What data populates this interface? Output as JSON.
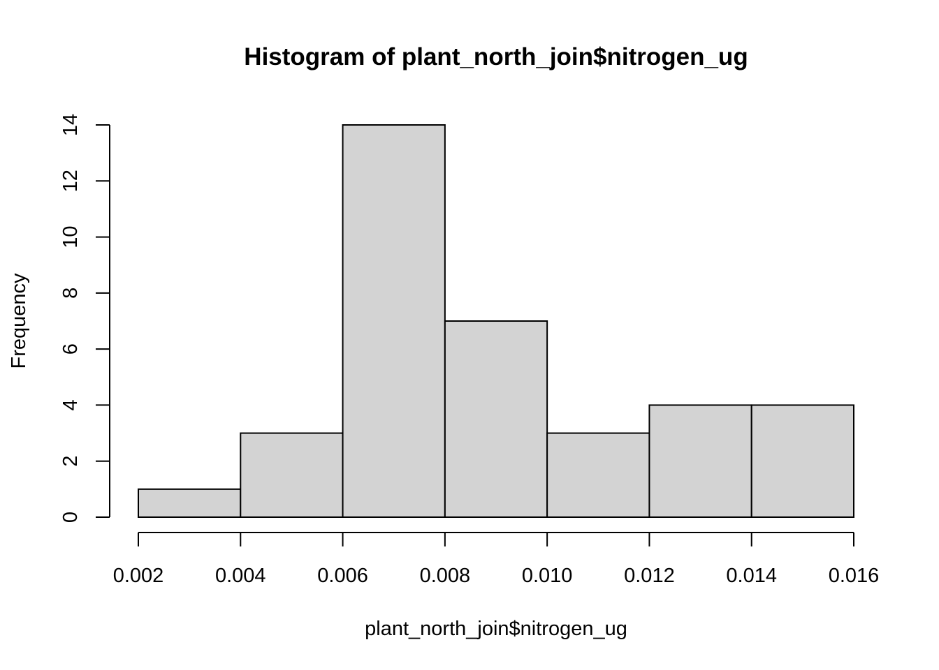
{
  "chart_data": {
    "type": "bar",
    "title": "Histogram of plant_north_join$nitrogen_ug",
    "xlabel": "plant_north_join$nitrogen_ug",
    "ylabel": "Frequency",
    "bins": [
      {
        "x0": 0.002,
        "x1": 0.004,
        "count": 1
      },
      {
        "x0": 0.004,
        "x1": 0.006,
        "count": 3
      },
      {
        "x0": 0.006,
        "x1": 0.008,
        "count": 14
      },
      {
        "x0": 0.008,
        "x1": 0.01,
        "count": 7
      },
      {
        "x0": 0.01,
        "x1": 0.012,
        "count": 3
      },
      {
        "x0": 0.012,
        "x1": 0.014,
        "count": 4
      },
      {
        "x0": 0.014,
        "x1": 0.016,
        "count": 4
      }
    ],
    "xlim": [
      0.002,
      0.016
    ],
    "ylim": [
      0,
      14
    ],
    "x_ticks": [
      "0.002",
      "0.004",
      "0.006",
      "0.008",
      "0.010",
      "0.012",
      "0.014",
      "0.016"
    ],
    "y_ticks": [
      "0",
      "2",
      "4",
      "6",
      "8",
      "10",
      "12",
      "14"
    ],
    "bar_color": "#d3d3d3",
    "grid": false,
    "legend": "none"
  }
}
